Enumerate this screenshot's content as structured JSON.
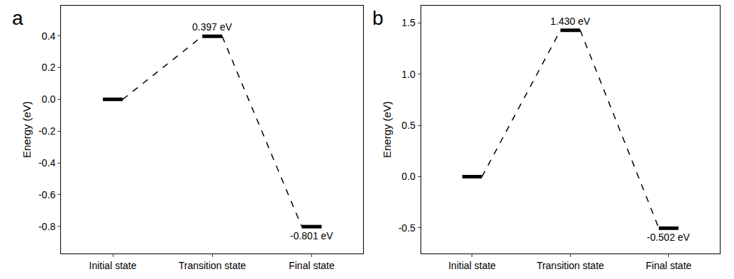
{
  "chart_data": [
    {
      "type": "line",
      "title": "a",
      "categories": [
        "Initial state",
        "Transition state",
        "Final state"
      ],
      "values": [
        0,
        0.397,
        -0.801
      ],
      "value_labels": [
        null,
        "0.397 eV",
        "-0.801 eV"
      ],
      "data_labels": true,
      "y_label": "Energy (eV)",
      "ylim": [
        -0.97,
        0.59
      ],
      "yticks": [
        -0.8,
        -0.6,
        -0.4,
        -0.2,
        {
          "value": 0,
          "label": "0.0"
        },
        0.2,
        0.4
      ],
      "color": "#000000",
      "line_style": "dashed",
      "grid": false
    },
    {
      "type": "line",
      "title": "b",
      "categories": [
        "Initial state",
        "Transition state",
        "Final state"
      ],
      "values": [
        0,
        1.43,
        -0.502
      ],
      "value_labels": [
        null,
        "1.430 eV",
        "-0.502 eV"
      ],
      "data_labels": true,
      "y_label": "Energy (eV)",
      "ylim": [
        -0.75,
        1.67
      ],
      "yticks": [
        -0.5,
        {
          "value": 0,
          "label": "0.0"
        },
        0.5,
        {
          "value": 1,
          "label": "1.0"
        },
        1.5
      ],
      "color": "#000000",
      "line_style": "dashed",
      "grid": false
    }
  ]
}
